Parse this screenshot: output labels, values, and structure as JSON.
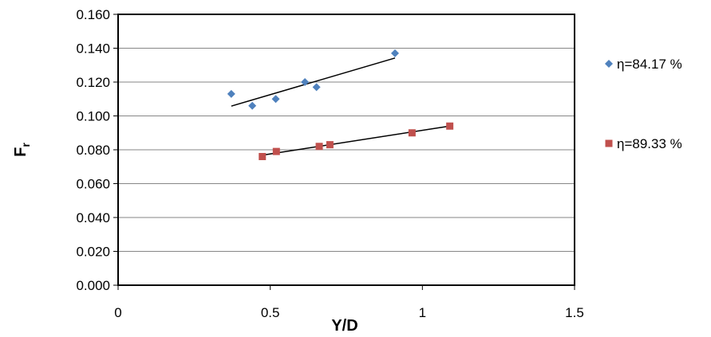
{
  "chart_data": {
    "type": "scatter",
    "xlabel": "Y/D",
    "ylabel_main": "F",
    "ylabel_sub": "r",
    "xlim": [
      0,
      1.5
    ],
    "ylim": [
      0,
      0.16
    ],
    "x_ticks": [
      0,
      0.5,
      1,
      1.5
    ],
    "x_tick_labels": [
      "0",
      "0.5",
      "1",
      "1.5"
    ],
    "y_ticks": [
      0,
      0.02,
      0.04,
      0.06,
      0.08,
      0.1,
      0.12,
      0.14,
      0.16
    ],
    "y_tick_labels": [
      "0.000",
      "0.020",
      "0.040",
      "0.060",
      "0.080",
      "0.100",
      "0.120",
      "0.140",
      "0.160"
    ],
    "grid": "horizontal",
    "legend_position": "right",
    "series": [
      {
        "name": "η=84.17 %",
        "marker": "diamond",
        "color": "#4F81BD",
        "points": [
          {
            "x": 0.372,
            "y": 0.113
          },
          {
            "x": 0.441,
            "y": 0.106
          },
          {
            "x": 0.518,
            "y": 0.11
          },
          {
            "x": 0.614,
            "y": 0.12
          },
          {
            "x": 0.652,
            "y": 0.117
          },
          {
            "x": 0.91,
            "y": 0.137
          }
        ],
        "trendline": {
          "x": [
            0.372,
            0.91
          ],
          "y": [
            0.1058,
            0.1342
          ]
        }
      },
      {
        "name": "η=89.33 %",
        "marker": "square",
        "color": "#C0504D",
        "points": [
          {
            "x": 0.474,
            "y": 0.076
          },
          {
            "x": 0.52,
            "y": 0.079
          },
          {
            "x": 0.661,
            "y": 0.082
          },
          {
            "x": 0.696,
            "y": 0.083
          },
          {
            "x": 0.966,
            "y": 0.09
          },
          {
            "x": 1.09,
            "y": 0.094
          }
        ],
        "trendline": {
          "x": [
            0.474,
            1.09
          ],
          "y": [
            0.0768,
            0.094
          ]
        }
      }
    ]
  }
}
